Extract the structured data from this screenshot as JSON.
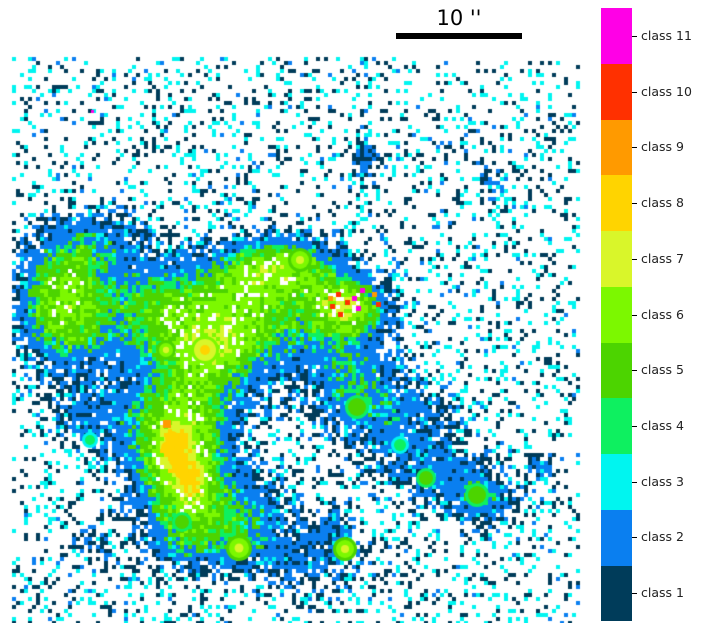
{
  "scale_bar": {
    "label": "10 ''"
  },
  "colorbar": {
    "classes": [
      {
        "label": "class 1",
        "color": "#003c5a"
      },
      {
        "label": "class 2",
        "color": "#0a7ff0"
      },
      {
        "label": "class 3",
        "color": "#00f5f0"
      },
      {
        "label": "class 4",
        "color": "#0ef060"
      },
      {
        "label": "class 5",
        "color": "#4cd400"
      },
      {
        "label": "class 6",
        "color": "#7cf800"
      },
      {
        "label": "class 7",
        "color": "#d9f62a"
      },
      {
        "label": "class 8",
        "color": "#ffd400"
      },
      {
        "label": "class 9",
        "color": "#ff9a00"
      },
      {
        "label": "class 10",
        "color": "#ff3000"
      },
      {
        "label": "class 11",
        "color": "#ff00e6"
      }
    ]
  }
}
